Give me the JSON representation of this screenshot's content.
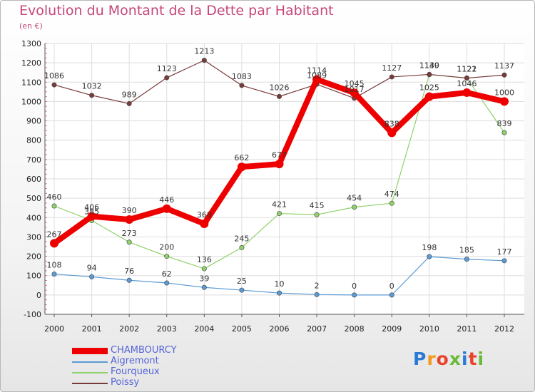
{
  "title": "Evolution du Montant de la Dette par Habitant",
  "unit": "(en €)",
  "logo": "Proxiti",
  "chart_data": {
    "type": "line",
    "title": "Evolution du Montant de la Dette par Habitant",
    "ylabel": "(en €)",
    "xlabel": "",
    "x": [
      "2000",
      "2001",
      "2002",
      "2003",
      "2004",
      "2005",
      "2006",
      "2007",
      "2008",
      "2009",
      "2010",
      "2011",
      "2012"
    ],
    "ylim": [
      -100,
      1300
    ],
    "yticks": [
      -100,
      0,
      100,
      200,
      300,
      400,
      500,
      600,
      700,
      800,
      900,
      1000,
      1100,
      1200,
      1300
    ],
    "grid": true,
    "legend": "bottom-left",
    "series": [
      {
        "name": "CHAMBOURCY",
        "color": "#ee0000",
        "values": [
          267,
          406,
          390,
          446,
          368,
          662,
          677,
          1114,
          1045,
          838,
          1025,
          1046,
          1000
        ]
      },
      {
        "name": "Aigremont",
        "color": "#5b9bd5",
        "values": [
          108,
          94,
          76,
          62,
          39,
          25,
          10,
          2,
          0,
          0,
          198,
          185,
          177
        ]
      },
      {
        "name": "Fourqueux",
        "color": "#8fd16a",
        "values": [
          460,
          385,
          273,
          200,
          136,
          245,
          421,
          415,
          454,
          474,
          1139,
          1122,
          839
        ]
      },
      {
        "name": "Poissy",
        "color": "#7a3b3b",
        "values": [
          1086,
          1032,
          989,
          1123,
          1213,
          1083,
          1026,
          1089,
          1017,
          1127,
          1140,
          1121,
          1137
        ]
      }
    ]
  }
}
